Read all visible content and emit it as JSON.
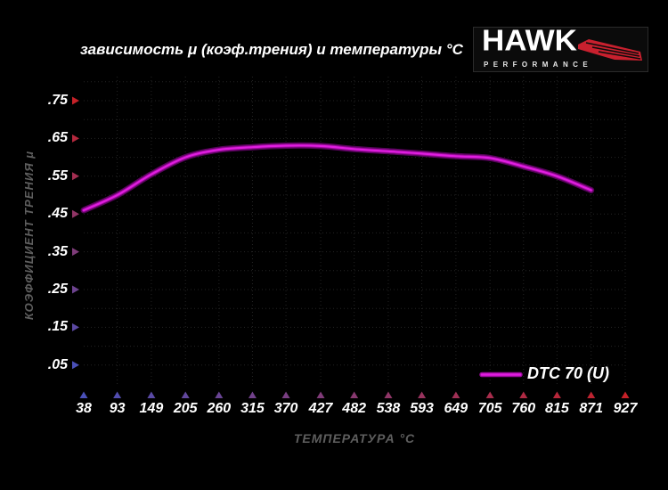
{
  "title": "зависимость μ (коэф.трения) и температуры °C",
  "logo": {
    "brand": "HAWK",
    "subtitle": "PERFORMANCE",
    "wing_icon": "hawk-wing-icon",
    "wing_color": "#c8202e"
  },
  "axes": {
    "x_label": "ТЕМПЕРАТУРА °C",
    "y_label": "КОЭФФИЦИЕНТ ТРЕНИЯ μ"
  },
  "legend": {
    "label": "DTC 70 (U)",
    "position": "lower right"
  },
  "colors": {
    "background": "#000000",
    "curve_core": "#e01ee0",
    "curve_mid": "#9c0a9c",
    "curve_halo": "#56045a",
    "axis_red": "#c62128",
    "axis_blue": "#4a50b8",
    "grid": "#242424",
    "text_white": "#ffffff",
    "text_gray": "#5e5e5e"
  },
  "chart_data": {
    "type": "line",
    "title": "зависимость μ (коэф.трения) и температуры °C",
    "xlabel": "ТЕМПЕРАТУРА °C",
    "ylabel": "КОЭФФИЦИЕНТ ТРЕНИЯ μ",
    "xlim": [
      38,
      927
    ],
    "ylim": [
      0,
      0.8
    ],
    "grid": true,
    "grid_step_y": 0.05,
    "x_ticks": [
      38,
      93,
      149,
      205,
      260,
      315,
      370,
      427,
      482,
      538,
      593,
      649,
      705,
      760,
      815,
      871,
      927
    ],
    "x_tick_labels": [
      "38",
      "93",
      "149",
      "205",
      "260",
      "315",
      "370",
      "427",
      "482",
      "538",
      "593",
      "649",
      "705",
      "760",
      "815",
      "871",
      "927"
    ],
    "y_ticks": [
      0.05,
      0.15,
      0.25,
      0.35,
      0.45,
      0.55,
      0.65,
      0.75
    ],
    "y_tick_labels": [
      ".05",
      ".15",
      ".25",
      ".35",
      ".45",
      ".55",
      ".65",
      ".75"
    ],
    "legend_position": "lower right",
    "series": [
      {
        "name": "DTC 70 (U)",
        "color": "#d414d4",
        "x": [
          38,
          93,
          149,
          205,
          260,
          315,
          370,
          427,
          482,
          538,
          593,
          649,
          705,
          760,
          815,
          871
        ],
        "y": [
          0.46,
          0.5,
          0.555,
          0.6,
          0.62,
          0.627,
          0.631,
          0.63,
          0.622,
          0.616,
          0.61,
          0.603,
          0.598,
          0.576,
          0.55,
          0.513
        ]
      }
    ]
  }
}
